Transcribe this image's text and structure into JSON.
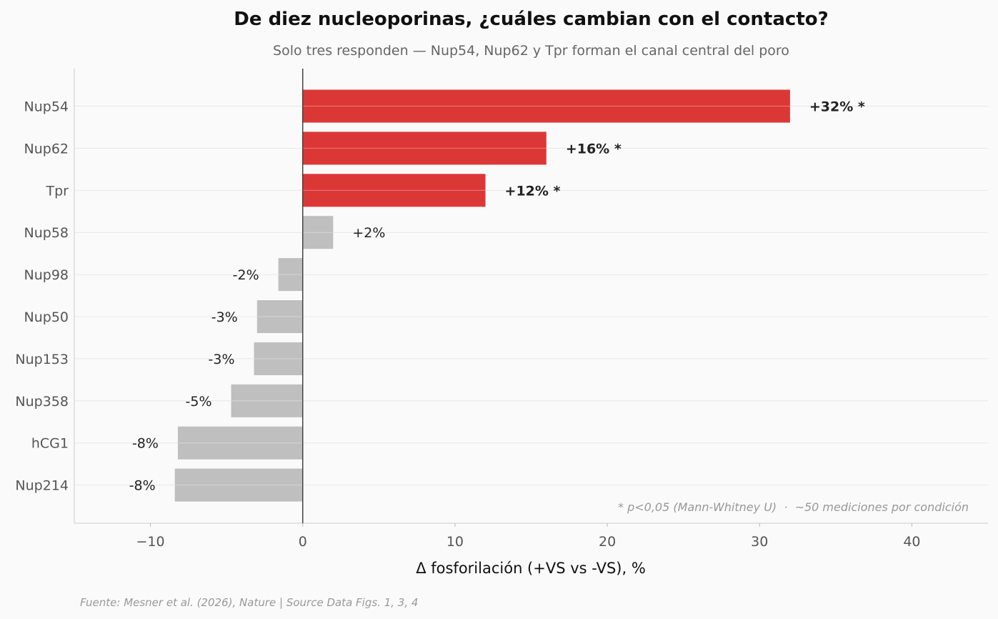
{
  "chart_data": {
    "type": "bar",
    "orientation": "horizontal",
    "title": "De diez nucleoporinas, ¿cuáles cambian con el contacto?",
    "subtitle": "Solo tres responden — Nup54, Nup62 y Tpr forman el canal central del poro",
    "xlabel": "Δ fosforilación (+VS vs -VS), %",
    "ylabel": "",
    "xlim": [
      -15,
      45
    ],
    "xticks": [
      -10,
      0,
      10,
      20,
      30,
      40
    ],
    "xtick_labels": [
      "−10",
      "0",
      "10",
      "20",
      "30",
      "40"
    ],
    "categories": [
      "Nup54",
      "Nup62",
      "Tpr",
      "Nup58",
      "Nup98",
      "Nup50",
      "Nup153",
      "Nup358",
      "hCG1",
      "Nup214"
    ],
    "values": [
      32,
      16,
      12,
      2,
      -1.6,
      -3.0,
      -3.2,
      -4.7,
      -8.2,
      -8.4
    ],
    "labels": [
      "+32% *",
      "+16% *",
      "+12% *",
      "+2%",
      "-2%",
      "-3%",
      "-3%",
      "-5%",
      "-8%",
      "-8%"
    ],
    "significant": [
      true,
      true,
      true,
      false,
      false,
      false,
      false,
      false,
      false,
      false
    ],
    "colors": {
      "significant": "#dc3737",
      "not_significant": "#bfbfbf"
    },
    "grid": "horizontal",
    "annotation": "* p<0,05 (Mann-Whitney U)  ·  ~50 mediciones por condición"
  },
  "footer": "Fuente: Mesner et al. (2026), Nature | Source Data Figs. 1, 3, 4"
}
